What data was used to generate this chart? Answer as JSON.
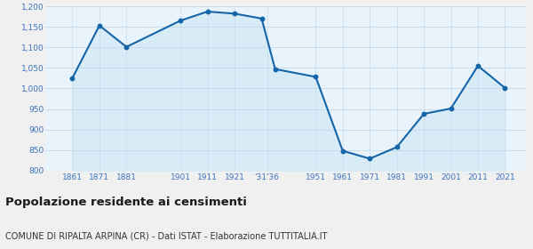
{
  "years": [
    1861,
    1871,
    1881,
    1901,
    1911,
    1921,
    1931,
    1936,
    1951,
    1961,
    1971,
    1981,
    1991,
    2001,
    2011,
    2021
  ],
  "population": [
    1025,
    1153,
    1101,
    1165,
    1187,
    1182,
    1170,
    1047,
    1028,
    848,
    829,
    857,
    938,
    951,
    1055,
    1001
  ],
  "x_positions": [
    1861,
    1871,
    1881,
    1901,
    1911,
    1921,
    1933,
    1951,
    1961,
    1971,
    1981,
    1991,
    2001,
    2011,
    2021
  ],
  "x_labels": [
    "1861",
    "1871",
    "1881",
    "1901",
    "1911",
    "1921",
    "'31'36",
    "1951",
    "1961",
    "1971",
    "1981",
    "1991",
    "2001",
    "2011",
    "2021"
  ],
  "ylim": [
    800,
    1200
  ],
  "yticks": [
    800,
    850,
    900,
    950,
    1000,
    1050,
    1100,
    1150,
    1200
  ],
  "xlim": [
    1851,
    2029
  ],
  "line_color": "#1565a8",
  "fill_color": "#d8ecf8",
  "bg_color": "#e8f3fb",
  "fig_bg": "#f0f0f0",
  "grid_color": "#c0d4e4",
  "axis_label_color": "#3a72c0",
  "title": "Popolazione residente ai censimenti",
  "subtitle": "COMUNE DI RIPALTA ARPINA (CR) - Dati ISTAT - Elaborazione TUTTITALIA.IT",
  "title_color": "#1a1a1a",
  "subtitle_color": "#333333",
  "title_fontsize": 9.5,
  "subtitle_fontsize": 7.0
}
